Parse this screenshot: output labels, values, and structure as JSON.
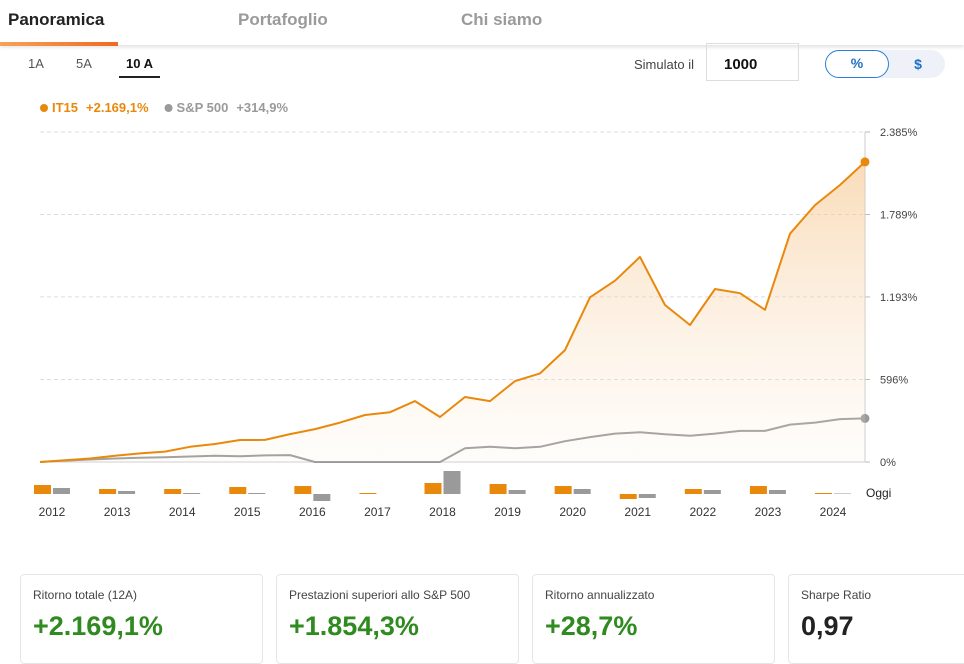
{
  "tabs": [
    "Panoramica",
    "Portafoglio",
    "Chi siamo"
  ],
  "ranges": [
    "1A",
    "5A",
    "10 A"
  ],
  "simulation": {
    "label": "Simulato il",
    "amount": "1000"
  },
  "units": [
    "%",
    "$"
  ],
  "chart_data": [
    {
      "type": "line",
      "series": [
        {
          "name": "IT15",
          "total": "+2.169,1%",
          "color": "#e8890c",
          "values": [
            0,
            12,
            25,
            45,
            62,
            75,
            110,
            130,
            159,
            160,
            202,
            238,
            285,
            340,
            360,
            440,
            325,
            470,
            440,
            585,
            640,
            809,
            1190,
            1310,
            1482,
            1135,
            990,
            1250,
            1220,
            1100,
            1650,
            1857,
            2002,
            2169
          ]
        },
        {
          "name": "S&P 500",
          "total": "+314,9%",
          "color": "#9a9a9a",
          "values": [
            0,
            10,
            18,
            25,
            30,
            35,
            40,
            45,
            42,
            48,
            50,
            0,
            0,
            0,
            0,
            0,
            0,
            100,
            110,
            100,
            110,
            150,
            180,
            205,
            215,
            200,
            190,
            205,
            225,
            225,
            270,
            285,
            310,
            315
          ]
        }
      ],
      "ylim": [
        0,
        2385
      ],
      "yticks": [
        {
          "value": 0,
          "label": "0%"
        },
        {
          "value": 596,
          "label": "596%"
        },
        {
          "value": 1193,
          "label": "1.193%"
        },
        {
          "value": 1789,
          "label": "1.789%"
        },
        {
          "value": 2385,
          "label": "2.385%"
        }
      ],
      "grid": true,
      "end_label": "Oggi"
    },
    {
      "type": "bar",
      "categories": [
        "2012",
        "2013",
        "2014",
        "2015",
        "2016",
        "2017",
        "2018",
        "2019",
        "2020",
        "2021",
        "2022",
        "2023",
        "2024"
      ],
      "series": [
        {
          "name": "IT15",
          "color": "#e8890c",
          "values": [
            9,
            5,
            5,
            7,
            8,
            1,
            11,
            10,
            8,
            -5,
            5,
            8,
            1
          ]
        },
        {
          "name": "S&P 500",
          "color": "#9a9a9a",
          "values": [
            6,
            3,
            1,
            1,
            -7,
            0,
            23,
            4,
            5,
            -4,
            4,
            4,
            0.5
          ]
        }
      ],
      "ylim": [
        -10,
        25
      ]
    }
  ],
  "stats": [
    {
      "label": "Ritorno totale (12A)",
      "value": "+2.169,1%"
    },
    {
      "label": "Prestazioni superiori allo S&P 500",
      "value": "+1.854,3%"
    },
    {
      "label": "Ritorno annualizzato",
      "value": "+28,7%"
    },
    {
      "label": "Sharpe Ratio",
      "value": "0,97"
    }
  ]
}
